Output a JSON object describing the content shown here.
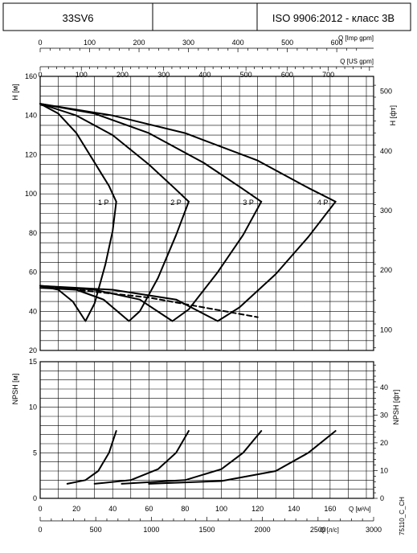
{
  "header": {
    "model": "33SV6",
    "blank": "",
    "standard": "ISO 9906:2012 - класс 3B"
  },
  "chart_data": [
    {
      "type": "line",
      "name": "head",
      "ylabel": "H [м]",
      "y2label": "H [фт]",
      "ylim": [
        20,
        160
      ],
      "yticks": [
        20,
        40,
        60,
        80,
        100,
        120,
        140,
        160
      ],
      "y2ticks": [
        100,
        200,
        300,
        400,
        500
      ],
      "xlim_m3h": [
        0,
        184
      ],
      "top_axis_imp": {
        "label": "Q [Imp gpm]",
        "ticks": [
          0,
          100,
          200,
          300,
          400,
          500,
          600
        ]
      },
      "top_axis_us": {
        "label": "Q [US gpm]",
        "ticks": [
          0,
          100,
          200,
          300,
          400,
          500,
          600,
          700
        ]
      },
      "series": [
        {
          "name": "1 P",
          "values": [
            [
              0,
              146
            ],
            [
              10,
              141
            ],
            [
              20,
              131
            ],
            [
              30,
              116
            ],
            [
              38,
              104
            ],
            [
              42,
              96
            ]
          ]
        },
        {
          "name": "2 P",
          "values": [
            [
              0,
              146
            ],
            [
              20,
              140
            ],
            [
              40,
              130
            ],
            [
              60,
              115
            ],
            [
              74,
              103
            ],
            [
              82,
              96
            ]
          ]
        },
        {
          "name": "3 P",
          "values": [
            [
              0,
              146
            ],
            [
              30,
              141
            ],
            [
              60,
              131
            ],
            [
              90,
              116
            ],
            [
              111,
              103
            ],
            [
              122,
              96
            ]
          ]
        },
        {
          "name": "4 P",
          "values": [
            [
              0,
              146
            ],
            [
              40,
              140
            ],
            [
              80,
              131
            ],
            [
              120,
              117
            ],
            [
              148,
              103
            ],
            [
              163,
              96
            ]
          ]
        }
      ],
      "efficiency_curves": [
        {
          "name": "1 P",
          "values": [
            [
              0,
              53
            ],
            [
              10,
              51
            ],
            [
              18,
              45
            ],
            [
              25,
              35
            ],
            [
              30,
              44
            ],
            [
              36,
              64
            ],
            [
              40,
              81
            ],
            [
              42,
              96
            ]
          ]
        },
        {
          "name": "2 P",
          "values": [
            [
              0,
              52
            ],
            [
              20,
              51
            ],
            [
              35,
              46
            ],
            [
              49,
              35
            ],
            [
              55,
              40
            ],
            [
              65,
              57
            ],
            [
              75,
              79
            ],
            [
              82,
              96
            ]
          ]
        },
        {
          "name": "3 P",
          "values": [
            [
              0,
              53
            ],
            [
              30,
              51
            ],
            [
              55,
              46
            ],
            [
              73,
              35
            ],
            [
              82,
              41
            ],
            [
              98,
              60
            ],
            [
              112,
              79
            ],
            [
              122,
              96
            ]
          ]
        },
        {
          "name": "4 P",
          "values": [
            [
              0,
              53
            ],
            [
              40,
              51
            ],
            [
              75,
              46
            ],
            [
              98,
              35
            ],
            [
              110,
              42
            ],
            [
              130,
              59
            ],
            [
              148,
              78
            ],
            [
              163,
              96
            ]
          ]
        }
      ],
      "dashed_line": [
        [
          0,
          53
        ],
        [
          30,
          50
        ],
        [
          60,
          47
        ],
        [
          90,
          42
        ],
        [
          120,
          37
        ]
      ]
    },
    {
      "type": "line",
      "name": "npsh",
      "ylabel": "NPSH [м]",
      "y2label": "NPSH [фт]",
      "ylim": [
        0,
        15
      ],
      "yticks": [
        0,
        5,
        10,
        15
      ],
      "y2ticks": [
        0,
        10,
        20,
        30,
        40
      ],
      "xticks_m3h": [
        0,
        20,
        40,
        60,
        80,
        100,
        120,
        140,
        160
      ],
      "x_label_m3h": "Q [м³/ч]",
      "x_lps": {
        "label": "Q [л/с]",
        "ticks": [
          0,
          500,
          1000,
          1500,
          2000,
          2500,
          3000
        ]
      },
      "series": [
        {
          "name": "1 P",
          "values": [
            [
              15,
              1.6
            ],
            [
              25,
              2.0
            ],
            [
              32,
              3.0
            ],
            [
              38,
              5.0
            ],
            [
              42,
              7.4
            ]
          ]
        },
        {
          "name": "2 P",
          "values": [
            [
              30,
              1.6
            ],
            [
              50,
              2.0
            ],
            [
              65,
              3.2
            ],
            [
              75,
              5.0
            ],
            [
              82,
              7.4
            ]
          ]
        },
        {
          "name": "3 P",
          "values": [
            [
              45,
              1.6
            ],
            [
              80,
              2.0
            ],
            [
              100,
              3.2
            ],
            [
              112,
              5.0
            ],
            [
              122,
              7.4
            ]
          ]
        },
        {
          "name": "4 P",
          "values": [
            [
              60,
              1.6
            ],
            [
              100,
              1.9
            ],
            [
              130,
              3.0
            ],
            [
              148,
              5.0
            ],
            [
              163,
              7.4
            ]
          ]
        }
      ]
    }
  ],
  "code": "75110_C_CH"
}
